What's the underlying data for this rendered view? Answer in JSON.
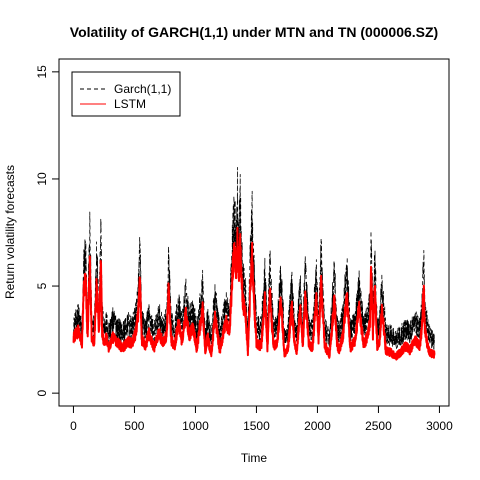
{
  "chart_data": {
    "type": "line",
    "title": "Volatility of GARCH(1,1) under MTN and TN (000006.SZ)",
    "xlabel": "Time",
    "ylabel": "Return volatility forecasts",
    "xlim": [
      0,
      3000
    ],
    "ylim": [
      0,
      15
    ],
    "xticks": [
      0,
      500,
      1000,
      1500,
      2000,
      2500,
      3000
    ],
    "yticks": [
      0,
      5,
      10,
      15
    ],
    "grid": false,
    "legend_position": "top-left",
    "n_points": 2960,
    "series": [
      {
        "name": "Garch(1,1)",
        "color": "#000000",
        "style": "dashed",
        "x": [
          0,
          40,
          70,
          85,
          100,
          115,
          135,
          150,
          170,
          190,
          210,
          225,
          235,
          250,
          270,
          290,
          320,
          360,
          400,
          450,
          480,
          510,
          530,
          545,
          560,
          590,
          620,
          660,
          700,
          740,
          765,
          780,
          800,
          830,
          860,
          890,
          920,
          950,
          980,
          1010,
          1040,
          1060,
          1080,
          1100,
          1130,
          1160,
          1200,
          1250,
          1280,
          1300,
          1320,
          1335,
          1345,
          1355,
          1365,
          1375,
          1390,
          1410,
          1430,
          1450,
          1465,
          1480,
          1500,
          1540,
          1570,
          1590,
          1610,
          1640,
          1670,
          1700,
          1730,
          1760,
          1790,
          1810,
          1830,
          1860,
          1880,
          1900,
          1930,
          1960,
          1990,
          2010,
          2030,
          2060,
          2100,
          2140,
          2160,
          2180,
          2210,
          2240,
          2270,
          2310,
          2340,
          2380,
          2410,
          2430,
          2440,
          2455,
          2470,
          2490,
          2510,
          2530,
          2560,
          2600,
          2640,
          2680,
          2720,
          2760,
          2800,
          2840,
          2860,
          2870,
          2880,
          2900,
          2920,
          2960
        ],
        "y": [
          3.0,
          3.6,
          2.9,
          5.8,
          6.6,
          3.3,
          7.4,
          3.4,
          3.1,
          6.6,
          3.5,
          7.5,
          3.8,
          3.0,
          3.3,
          2.8,
          3.4,
          3.1,
          2.8,
          3.2,
          3.0,
          3.6,
          4.6,
          6.6,
          3.3,
          3.0,
          3.6,
          2.8,
          3.6,
          3.0,
          3.6,
          6.2,
          3.3,
          3.0,
          4.1,
          3.2,
          4.6,
          3.5,
          3.9,
          2.9,
          4.1,
          4.9,
          2.8,
          3.4,
          2.5,
          4.6,
          2.7,
          4.2,
          3.6,
          6.5,
          8.5,
          7.0,
          9.4,
          6.8,
          9.0,
          7.2,
          5.2,
          4.6,
          2.7,
          6.4,
          8.0,
          5.6,
          3.1,
          3.0,
          5.7,
          2.9,
          5.8,
          3.0,
          3.1,
          5.6,
          2.6,
          3.0,
          5.0,
          3.4,
          2.7,
          5.1,
          3.0,
          5.6,
          3.1,
          2.9,
          5.7,
          3.2,
          6.4,
          3.0,
          2.6,
          5.6,
          3.1,
          2.8,
          3.6,
          5.8,
          2.9,
          3.4,
          5.0,
          3.0,
          3.6,
          4.1,
          7.5,
          3.6,
          6.3,
          3.0,
          3.4,
          5.1,
          2.8,
          2.7,
          2.5,
          2.7,
          3.0,
          2.8,
          3.4,
          3.0,
          4.2,
          6.4,
          4.0,
          3.2,
          2.7,
          2.4
        ]
      },
      {
        "name": "LSTM",
        "color": "#ff0000",
        "style": "solid",
        "x": [
          0,
          40,
          70,
          85,
          100,
          115,
          135,
          150,
          170,
          190,
          210,
          225,
          235,
          250,
          270,
          290,
          320,
          360,
          400,
          450,
          480,
          510,
          530,
          545,
          560,
          590,
          620,
          660,
          700,
          740,
          765,
          780,
          800,
          830,
          860,
          890,
          920,
          950,
          980,
          1010,
          1040,
          1060,
          1080,
          1100,
          1130,
          1160,
          1200,
          1250,
          1280,
          1300,
          1320,
          1335,
          1345,
          1355,
          1365,
          1375,
          1390,
          1410,
          1430,
          1450,
          1465,
          1480,
          1500,
          1540,
          1570,
          1590,
          1610,
          1640,
          1670,
          1700,
          1730,
          1760,
          1790,
          1810,
          1830,
          1860,
          1880,
          1900,
          1930,
          1960,
          1990,
          2010,
          2030,
          2060,
          2100,
          2140,
          2160,
          2180,
          2210,
          2240,
          2270,
          2310,
          2340,
          2380,
          2410,
          2430,
          2440,
          2455,
          2470,
          2490,
          2510,
          2530,
          2560,
          2600,
          2640,
          2680,
          2720,
          2760,
          2800,
          2840,
          2860,
          2870,
          2880,
          2900,
          2920,
          2960
        ],
        "y": [
          2.6,
          2.9,
          2.3,
          4.8,
          5.4,
          2.6,
          6.0,
          2.6,
          2.4,
          5.2,
          2.8,
          6.0,
          2.9,
          2.3,
          2.6,
          2.1,
          2.6,
          2.4,
          2.1,
          2.4,
          2.3,
          2.8,
          3.7,
          5.2,
          2.5,
          2.2,
          2.8,
          2.1,
          2.8,
          2.3,
          2.8,
          4.9,
          2.5,
          2.2,
          3.3,
          2.4,
          3.7,
          2.7,
          3.1,
          2.1,
          3.2,
          3.9,
          2.0,
          2.6,
          1.8,
          3.6,
          2.0,
          3.4,
          2.8,
          5.2,
          6.8,
          5.6,
          7.3,
          5.5,
          7.0,
          5.8,
          4.2,
          3.7,
          1.9,
          4.9,
          6.4,
          4.3,
          2.3,
          2.2,
          4.5,
          2.1,
          4.6,
          2.2,
          2.3,
          4.4,
          1.8,
          2.2,
          4.0,
          2.5,
          1.9,
          4.0,
          2.2,
          4.4,
          2.3,
          2.1,
          4.5,
          2.4,
          5.1,
          2.2,
          1.8,
          4.4,
          2.3,
          2.0,
          2.7,
          4.6,
          2.1,
          2.5,
          4.0,
          2.2,
          2.7,
          3.2,
          6.0,
          2.7,
          5.0,
          2.2,
          2.5,
          4.0,
          2.0,
          1.9,
          1.7,
          1.9,
          2.2,
          2.0,
          2.5,
          2.2,
          3.3,
          5.1,
          3.1,
          2.3,
          1.9,
          1.8
        ]
      }
    ]
  }
}
